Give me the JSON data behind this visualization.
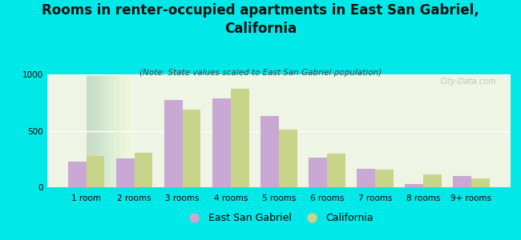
{
  "categories": [
    "1 room",
    "2 rooms",
    "3 rooms",
    "4 rooms",
    "5 rooms",
    "6 rooms",
    "7 rooms",
    "8 rooms",
    "9+ rooms"
  ],
  "east_san_gabriel": [
    230,
    255,
    775,
    785,
    630,
    265,
    165,
    25,
    100
  ],
  "california": [
    280,
    305,
    690,
    870,
    510,
    300,
    155,
    110,
    75
  ],
  "esg_color": "#c9a8d4",
  "ca_color": "#c8d48a",
  "title": "Rooms in renter-occupied apartments in East San Gabriel,\nCalifornia",
  "subtitle": "(Note: State values scaled to East San Gabriel population)",
  "ylim": [
    0,
    1000
  ],
  "yticks": [
    0,
    500,
    1000
  ],
  "legend_labels": [
    "East San Gabriel",
    "California"
  ],
  "bg_color": "#00e8e8",
  "plot_bg_color": "#eef5e4",
  "watermark": "City-Data.com",
  "bar_width": 0.38,
  "title_fontsize": 12,
  "subtitle_fontsize": 7.5,
  "tick_fontsize": 7.5,
  "legend_fontsize": 9
}
